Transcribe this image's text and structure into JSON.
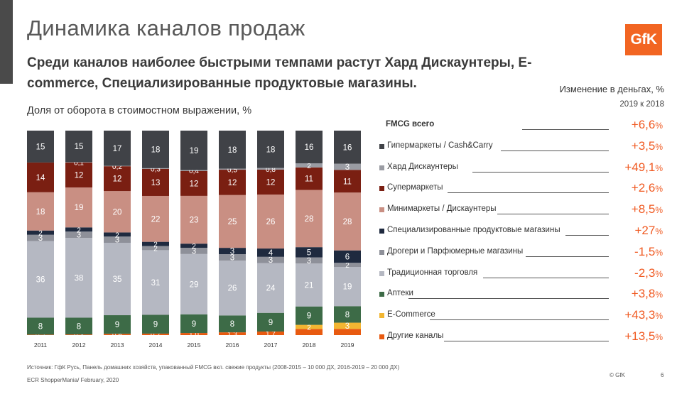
{
  "title": "Динамика каналов продаж",
  "subtitle": "Среди каналов наиболее быстрыми темпами растут Хард Дискаунтеры, E-commerce, Специализированные продуктовые магазины.",
  "logo_text": "GfK",
  "changes_header": "Изменение в деньгах, %",
  "changes_period": "2019 к 2018",
  "footer_source": "Источник: ГфК Русь, Панель домашних хозяйств, упакованный FMCG вкл. свежие продукты (2008-2015 – 10 000 ДХ, 2016-2019 – 20 000 ДХ)",
  "footer_event": "ECR ShopperMania/  February, 2020",
  "copyright": "© GfK",
  "page_number": "6",
  "colors": {
    "accent": "#f05a22",
    "logo": "#f26522"
  },
  "total_row": {
    "label": "FMCG всего",
    "change": "+6,6",
    "unit": "%"
  },
  "chart_data": {
    "type": "bar",
    "stacked": true,
    "title": "Доля от оборота в стоимостном выражении, %",
    "categories": [
      "2011",
      "2012",
      "2013",
      "2014",
      "2015",
      "2016",
      "2017",
      "2018",
      "2019"
    ],
    "ylim": [
      0,
      100
    ],
    "grid": false,
    "legend_position": "right",
    "series": [
      {
        "name": "Другие каналы",
        "color": "#e85a10",
        "text_color": "#ffffff",
        "change": "+13,5",
        "labels": [
          "0,2",
          "0,3",
          "0,6",
          "0,7",
          "1,0",
          "1,3",
          "1,7",
          "",
          ""
        ],
        "values": [
          0.2,
          0.3,
          0.6,
          0.7,
          1.0,
          1.3,
          1.7,
          3,
          3
        ]
      },
      {
        "name": "E-Commerce",
        "color": "#f2b632",
        "text_color": "#ffffff",
        "change": "+43,3",
        "labels": [
          "",
          "",
          "",
          "",
          "",
          "",
          "",
          "2",
          "3"
        ],
        "values": [
          0,
          0,
          0,
          0,
          0,
          0,
          0,
          2,
          3
        ]
      },
      {
        "name": "Аптеки",
        "color": "#3d6b47",
        "text_color": "#ffffff",
        "change": "+3,8",
        "labels": [
          "8",
          "8",
          "9",
          "9",
          "9",
          "8",
          "9",
          "9",
          "8"
        ],
        "values": [
          8,
          8,
          9,
          9,
          9,
          8,
          9,
          9,
          8
        ]
      },
      {
        "name": "Традиционная торговля",
        "color": "#b5b8c2",
        "text_color": "#ffffff",
        "change": "-2,3",
        "labels": [
          "36",
          "38",
          "35",
          "31",
          "29",
          "26",
          "24",
          "21",
          "19"
        ],
        "values": [
          36,
          38,
          35,
          31,
          29,
          26,
          24,
          21,
          19
        ]
      },
      {
        "name": "Дрогери и Парфюмерные магазины",
        "color": "#8e9099",
        "text_color": "#ffffff",
        "change": "-1,5",
        "labels": [
          "3",
          "3",
          "3",
          "2",
          "3",
          "3",
          "3",
          "3",
          "2"
        ],
        "values": [
          3,
          3,
          3,
          2,
          3,
          3,
          3,
          3,
          2
        ]
      },
      {
        "name": "Специализированные продуктовые магазины",
        "color": "#1f2a3f",
        "text_color": "#ffffff",
        "change": "+27",
        "labels": [
          "2",
          "2",
          "2",
          "2",
          "2",
          "3",
          "4",
          "5",
          "6"
        ],
        "values": [
          2,
          2,
          2,
          2,
          2,
          3,
          4,
          5,
          6
        ]
      },
      {
        "name": "Минимаркеты / Дискаунтеры",
        "color": "#c98f83",
        "text_color": "#ffffff",
        "change": "+8,5",
        "labels": [
          "18",
          "19",
          "20",
          "22",
          "23",
          "25",
          "26",
          "28",
          "28"
        ],
        "values": [
          18,
          19,
          20,
          22,
          23,
          25,
          26,
          28,
          28
        ]
      },
      {
        "name": "Супермаркеты",
        "color": "#7a1f12",
        "text_color": "#ffffff",
        "change": "+2,6",
        "labels": [
          "14",
          "12",
          "12",
          "13",
          "12",
          "12",
          "12",
          "11",
          "11"
        ],
        "values": [
          14,
          12,
          12,
          13,
          12,
          12,
          12,
          11,
          11
        ]
      },
      {
        "name": "Хард Дискаунтеры",
        "color": "#9a9ca3",
        "text_color": "#ffffff",
        "change": "+49,1",
        "labels": [
          "",
          "0,1",
          "0,2",
          "0,3",
          "0,4",
          "0,5",
          "0,8",
          "2",
          "3"
        ],
        "values": [
          0,
          0.1,
          0.2,
          0.3,
          0.4,
          0.5,
          0.8,
          2,
          3
        ]
      },
      {
        "name": "Гипермаркеты /  Cash&Carry",
        "color": "#404247",
        "text_color": "#ffffff",
        "change": "+3,5",
        "labels": [
          "15",
          "15",
          "17",
          "18",
          "19",
          "18",
          "18",
          "16",
          "16"
        ],
        "values": [
          15,
          15,
          17,
          18,
          19,
          18,
          18,
          16,
          16
        ]
      }
    ]
  }
}
